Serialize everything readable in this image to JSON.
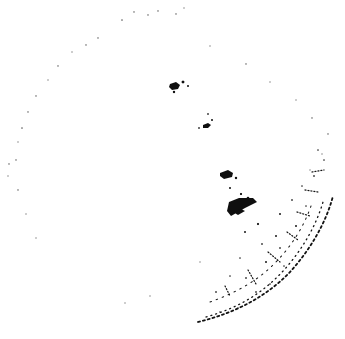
{
  "image": {
    "background_color": "#ffffff",
    "ink_color": "#111111",
    "contains_text": false
  }
}
